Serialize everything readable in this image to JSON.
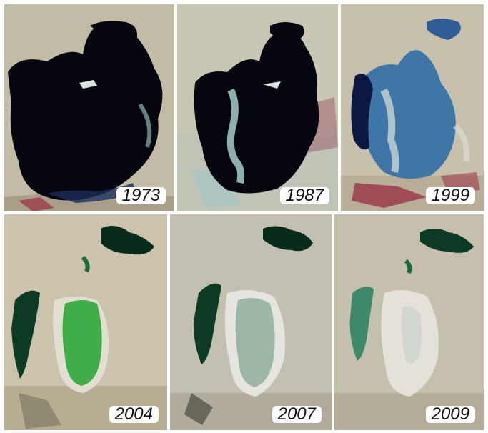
{
  "panels": [
    {
      "year": "1973",
      "icon": "satellite-image-aral-sea"
    },
    {
      "year": "1987",
      "icon": "satellite-image-aral-sea"
    },
    {
      "year": "1999",
      "icon": "satellite-image-aral-sea"
    },
    {
      "year": "2004",
      "icon": "satellite-image-aral-sea"
    },
    {
      "year": "2007",
      "icon": "satellite-image-aral-sea"
    },
    {
      "year": "2009",
      "icon": "satellite-image-aral-sea"
    }
  ],
  "colors": {
    "deep_water": "#05060f",
    "blue_water": "#3f76a8",
    "green_water": "#3fae48",
    "desert": "#c8bfa8",
    "salt_flat": "#e4e1d8",
    "vegetation": "#a04a5a"
  }
}
